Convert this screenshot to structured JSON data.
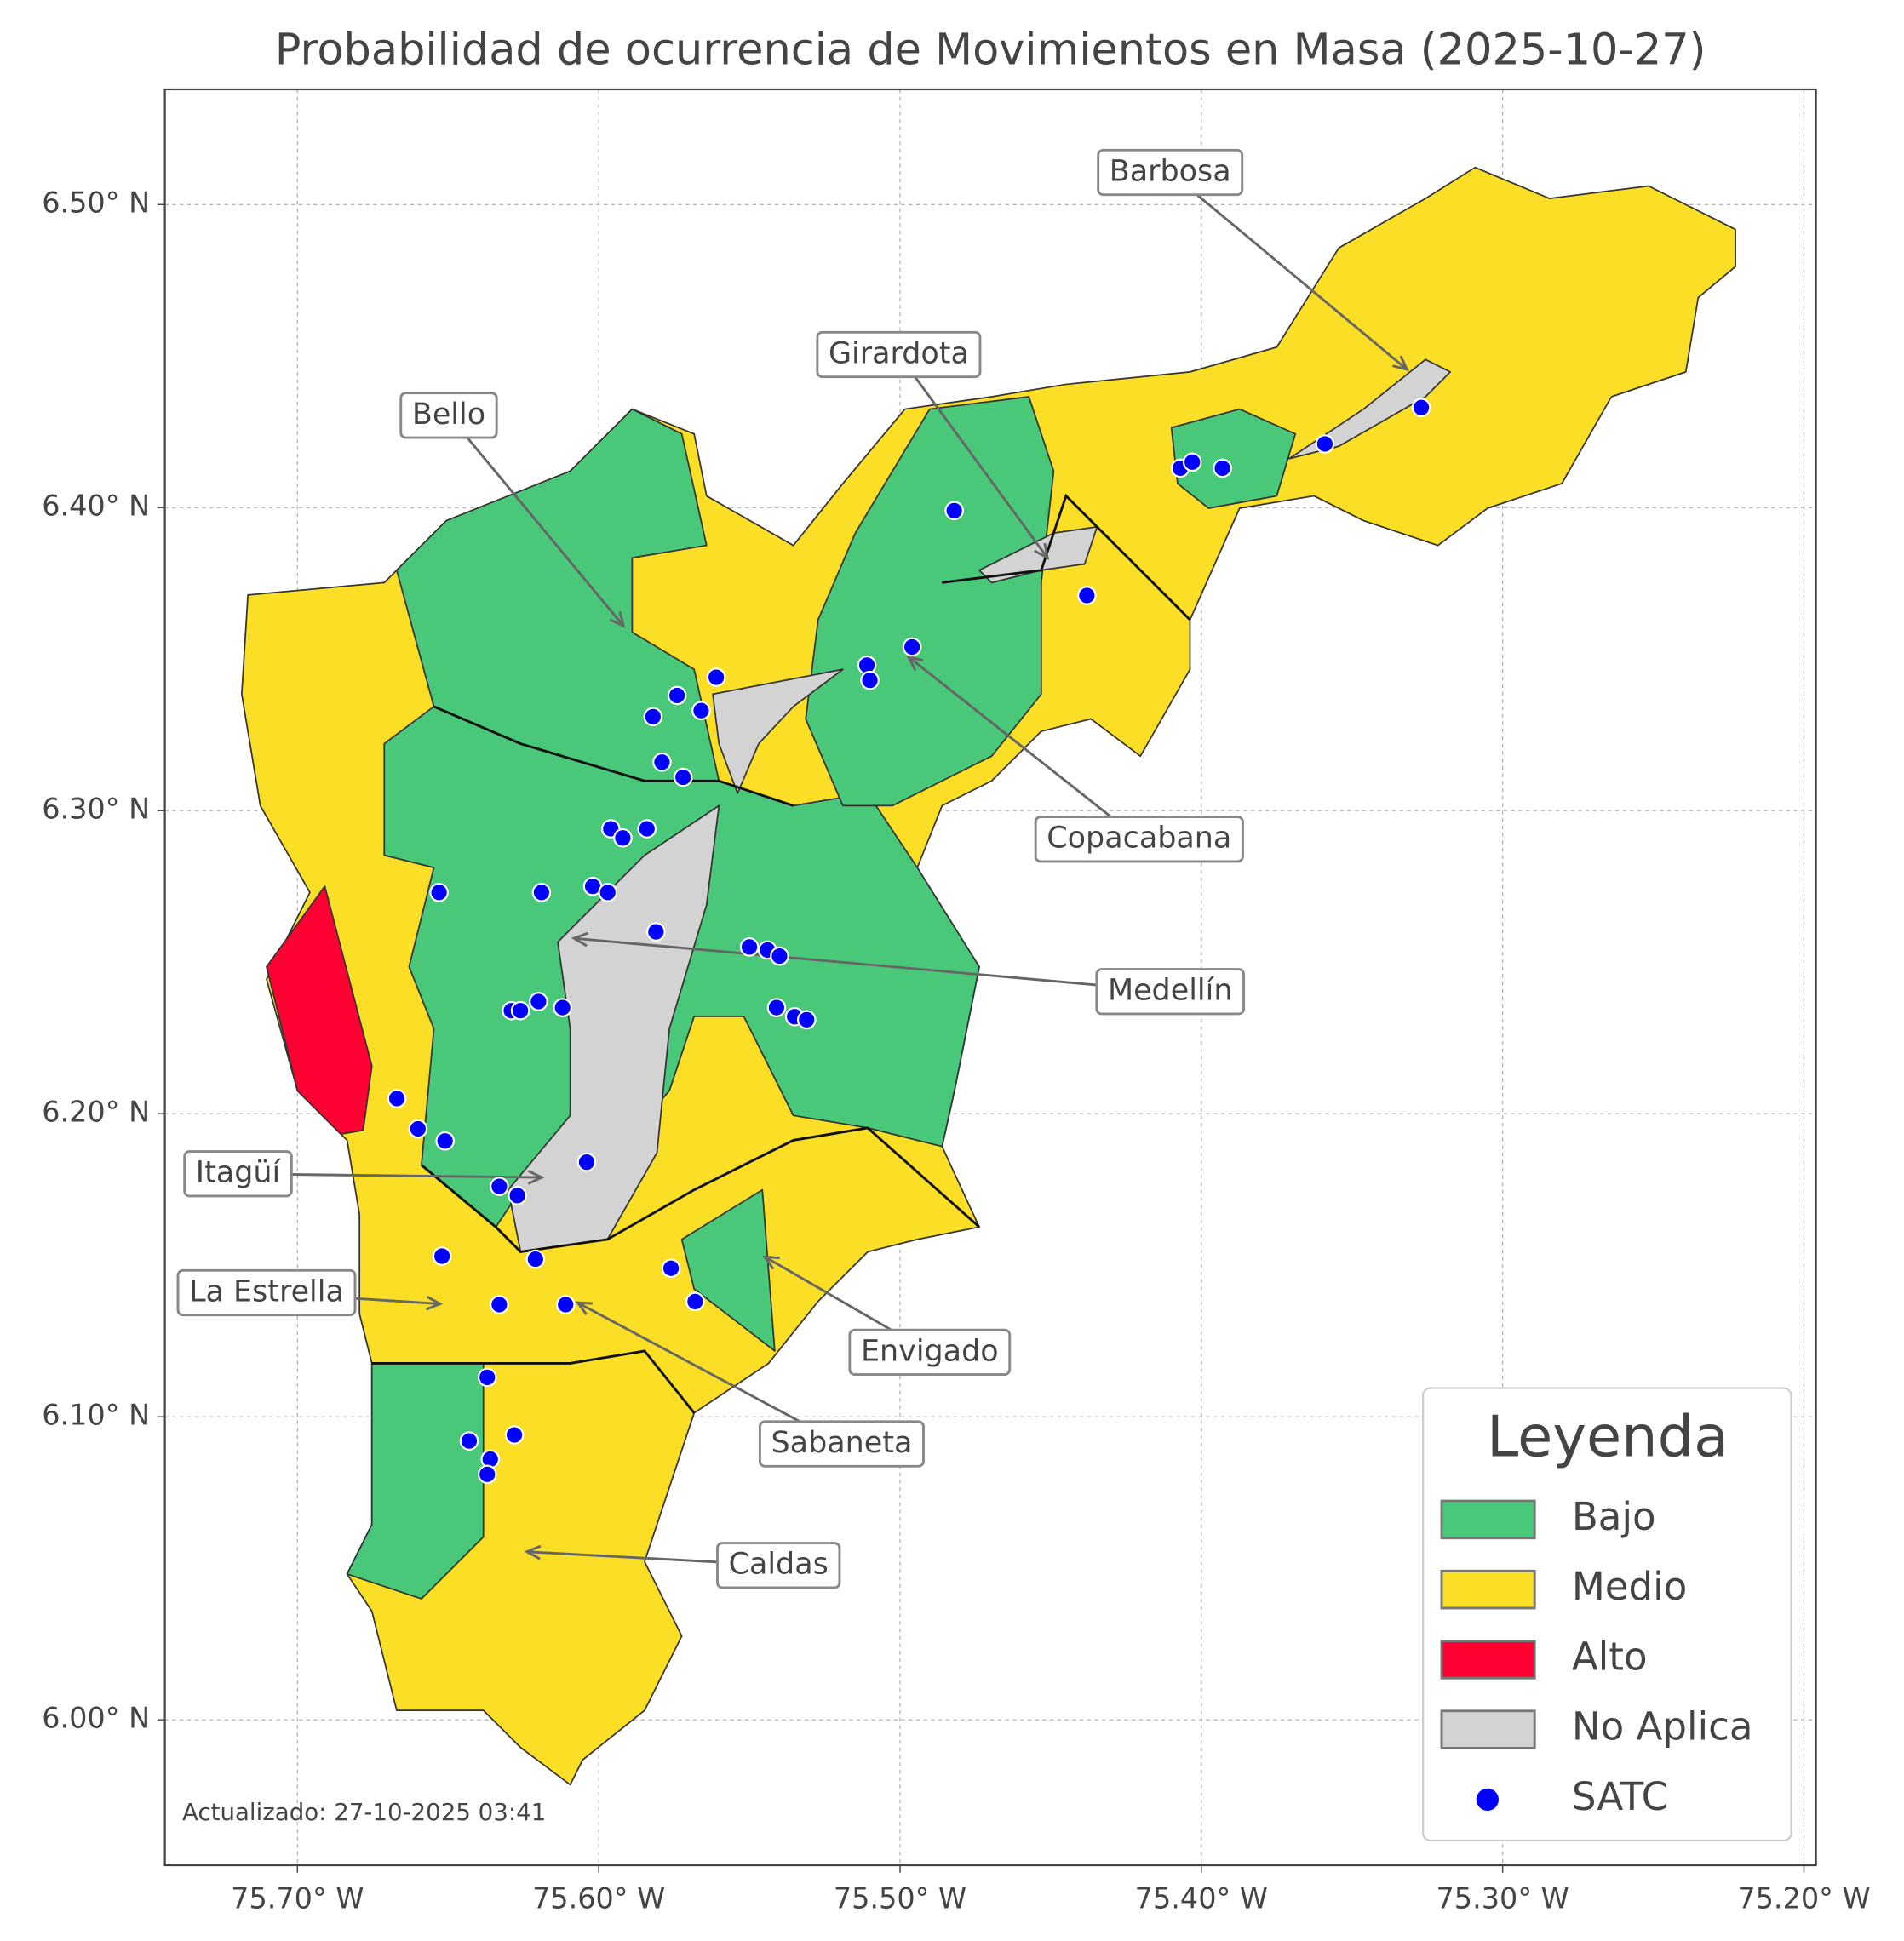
{
  "chart_data": {
    "type": "scatter",
    "title": "Probabilidad de ocurrencia de Movimientos en Masa (2025-10-27)",
    "xlim": [
      -75.744,
      -75.196
    ],
    "ylim": [
      5.952,
      6.538
    ],
    "xticks": [
      {
        "value": -75.7,
        "label": "75.70° W"
      },
      {
        "value": -75.6,
        "label": "75.60° W"
      },
      {
        "value": -75.5,
        "label": "75.50° W"
      },
      {
        "value": -75.4,
        "label": "75.40° W"
      },
      {
        "value": -75.3,
        "label": "75.30° W"
      },
      {
        "value": -75.2,
        "label": "75.20° W"
      }
    ],
    "yticks": [
      {
        "value": 6.0,
        "label": "6.00° N"
      },
      {
        "value": 6.1,
        "label": "6.10° N"
      },
      {
        "value": 6.2,
        "label": "6.20° N"
      },
      {
        "value": 6.3,
        "label": "6.30° N"
      },
      {
        "value": 6.4,
        "label": "6.40° N"
      },
      {
        "value": 6.5,
        "label": "6.50° N"
      }
    ],
    "grid": true,
    "x": [
      -75.482,
      -75.407,
      -75.403,
      -75.393,
      -75.359,
      -75.327,
      -75.438,
      -75.496,
      -75.511,
      -75.51,
      -75.561,
      -75.574,
      -75.582,
      -75.566,
      -75.579,
      -75.572,
      -75.596,
      -75.592,
      -75.584,
      -75.653,
      -75.619,
      -75.602,
      -75.597,
      -75.581,
      -75.55,
      -75.544,
      -75.54,
      -75.541,
      -75.535,
      -75.531,
      -75.629,
      -75.626,
      -75.62,
      -75.612,
      -75.667,
      -75.66,
      -75.651,
      -75.604,
      -75.633,
      -75.627,
      -75.652,
      -75.621,
      -75.576,
      -75.611,
      -75.633,
      -75.568,
      -75.637,
      -75.643,
      -75.628,
      -75.636,
      -75.637
    ],
    "series": [
      {
        "name": "SATC",
        "color": "#0000ff",
        "values": [
          6.399,
          6.413,
          6.415,
          6.413,
          6.421,
          6.433,
          6.371,
          6.354,
          6.348,
          6.343,
          6.344,
          6.338,
          6.331,
          6.333,
          6.316,
          6.311,
          6.294,
          6.291,
          6.294,
          6.273,
          6.273,
          6.275,
          6.273,
          6.26,
          6.255,
          6.254,
          6.252,
          6.235,
          6.232,
          6.231,
          6.234,
          6.234,
          6.237,
          6.235,
          6.205,
          6.195,
          6.191,
          6.184,
          6.176,
          6.173,
          6.153,
          6.152,
          6.149,
          6.137,
          6.137,
          6.138,
          6.113,
          6.092,
          6.094,
          6.086,
          6.081
        ]
      }
    ],
    "legend_title": "Leyenda",
    "legend": "lower right",
    "regions": [
      {
        "name": "Bajo",
        "color": "#48c878"
      },
      {
        "name": "Medio",
        "color": "#fbde26"
      },
      {
        "name": "Alto",
        "color": "#ff0033"
      },
      {
        "name": "No Aplica",
        "color": "#d3d3d3"
      }
    ],
    "annotations": [
      "Barbosa",
      "Girardota",
      "Bello",
      "Copacabana",
      "Medellín",
      "Itagüí",
      "La Estrella",
      "Envigado",
      "Sabaneta",
      "Caldas"
    ],
    "note": "Actualizado: 27-10-2025 03:41"
  }
}
